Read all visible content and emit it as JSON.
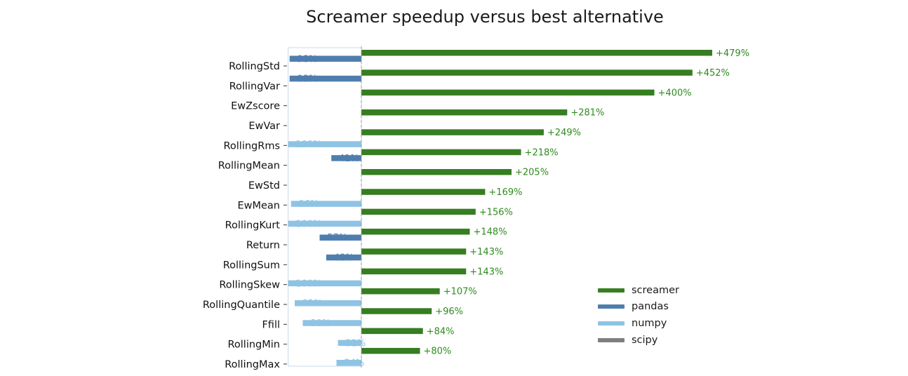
{
  "chart_data": {
    "type": "bar",
    "orientation": "horizontal",
    "title": "Screamer speedup versus best alternative",
    "xlabel": "",
    "ylabel": "",
    "xlim": [
      -100,
      479
    ],
    "grid": false,
    "legend_position": "lower-right",
    "categories": [
      "RollingStd",
      "RollingVar",
      "EwZscore",
      "EwVar",
      "RollingRms",
      "RollingMean",
      "EwStd",
      "EwMean",
      "RollingKurt",
      "Return",
      "RollingSum",
      "RollingSkew",
      "RollingQuantile",
      "Ffill",
      "RollingMin",
      "RollingMax"
    ],
    "series": [
      {
        "name": "screamer",
        "color": "#367e21",
        "values": [
          479,
          452,
          400,
          281,
          249,
          218,
          205,
          169,
          156,
          148,
          143,
          143,
          107,
          96,
          84,
          80
        ],
        "labels": [
          "+479%",
          "+452%",
          "+400%",
          "+281%",
          "+249%",
          "+218%",
          "+205%",
          "+169%",
          "+156%",
          "+148%",
          "+143%",
          "+143%",
          "+107%",
          "+96%",
          "+84%",
          "+80%"
        ]
      },
      {
        "name": "pandas",
        "color": "#4f7eae",
        "values": [
          -98,
          -98,
          null,
          null,
          null,
          -41,
          null,
          null,
          null,
          -57,
          -48,
          null,
          null,
          null,
          null,
          null
        ],
        "labels": [
          "-98%",
          "-98%",
          "",
          "",
          "",
          "-41%",
          "",
          "",
          "",
          "-57%",
          "-48%",
          "",
          "",
          "",
          "",
          ""
        ]
      },
      {
        "name": "numpy",
        "color": "#8ec3e4",
        "values": [
          null,
          null,
          null,
          null,
          -100,
          null,
          null,
          -96,
          -100,
          null,
          null,
          -100,
          -91,
          -80,
          -32,
          -34
        ],
        "labels": [
          "",
          "",
          "",
          "",
          "-100%",
          "",
          "",
          "-96%",
          "-100%",
          "",
          "",
          "-100%",
          "-91%",
          "-80%",
          "-32%",
          "-34%"
        ]
      },
      {
        "name": "scipy",
        "color": "#7f7f7f",
        "values": [
          null,
          null,
          null,
          null,
          null,
          null,
          null,
          null,
          null,
          null,
          null,
          null,
          null,
          null,
          null,
          null
        ],
        "labels": [
          "",
          "",
          "",
          "",
          "",
          "",
          "",
          "",
          "",
          "",
          "",
          "",
          "",
          "",
          "",
          ""
        ]
      }
    ]
  }
}
